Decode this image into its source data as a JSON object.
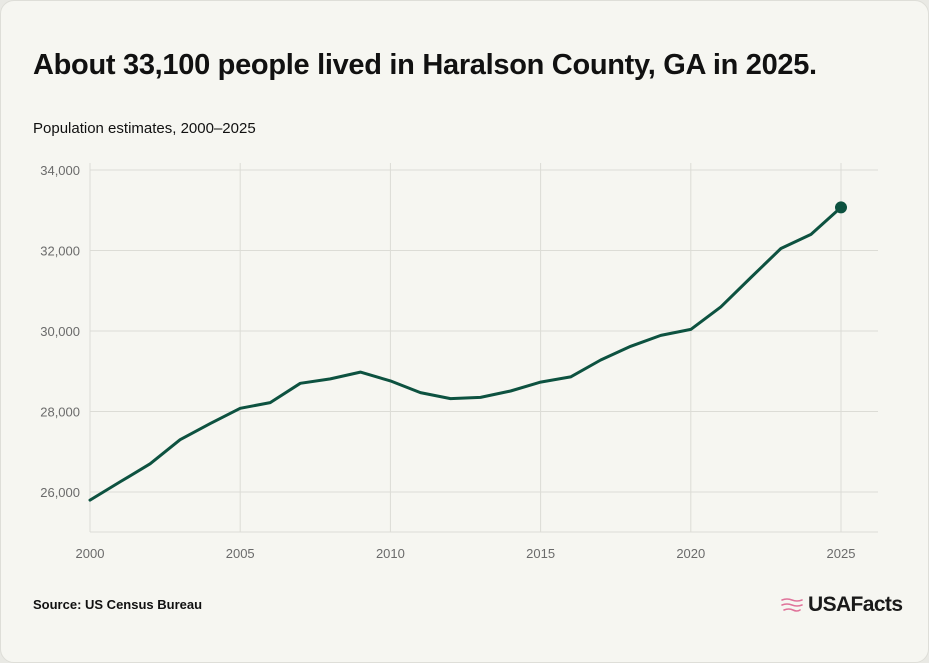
{
  "header": {
    "title": "About 33,100 people lived in Haralson County, GA in 2025.",
    "subtitle": "Population estimates, 2000–2025"
  },
  "footer": {
    "source": "Source: US Census Bureau",
    "logo_text": "USAFacts"
  },
  "colors": {
    "line": "#0d5240",
    "grid": "#dcdcd6",
    "tick_text": "#6b6b6b",
    "logo_icon": "#e0739a"
  },
  "chart_data": {
    "type": "line",
    "x": [
      2000,
      2001,
      2002,
      2003,
      2004,
      2005,
      2006,
      2007,
      2008,
      2009,
      2010,
      2011,
      2012,
      2013,
      2014,
      2015,
      2016,
      2017,
      2018,
      2019,
      2020,
      2021,
      2022,
      2023,
      2024,
      2025
    ],
    "series": [
      {
        "values": [
          25800,
          26250,
          26700,
          27300,
          27700,
          28080,
          28220,
          28700,
          28810,
          28980,
          28760,
          28470,
          28320,
          28350,
          28510,
          28730,
          28860,
          29280,
          29620,
          29890,
          30040,
          30600,
          31330,
          32050,
          32400,
          33070
        ]
      }
    ],
    "xlim": [
      2000,
      2025
    ],
    "ylim": [
      25000,
      34000
    ],
    "x_ticks": [
      2000,
      2005,
      2010,
      2015,
      2020,
      2025
    ],
    "x_tick_labels": [
      "2000",
      "2005",
      "2010",
      "2015",
      "2020",
      "2025"
    ],
    "y_ticks": [
      26000,
      28000,
      30000,
      32000,
      34000
    ],
    "y_tick_labels": [
      "26,000",
      "28,000",
      "30,000",
      "32,000",
      "34,000"
    ],
    "grid": true,
    "legend": "none",
    "end_marker": true,
    "title": "About 33,100 people lived in Haralson County, GA in 2025.",
    "subtitle": "Population estimates, 2000–2025",
    "xlabel": "",
    "ylabel": ""
  }
}
